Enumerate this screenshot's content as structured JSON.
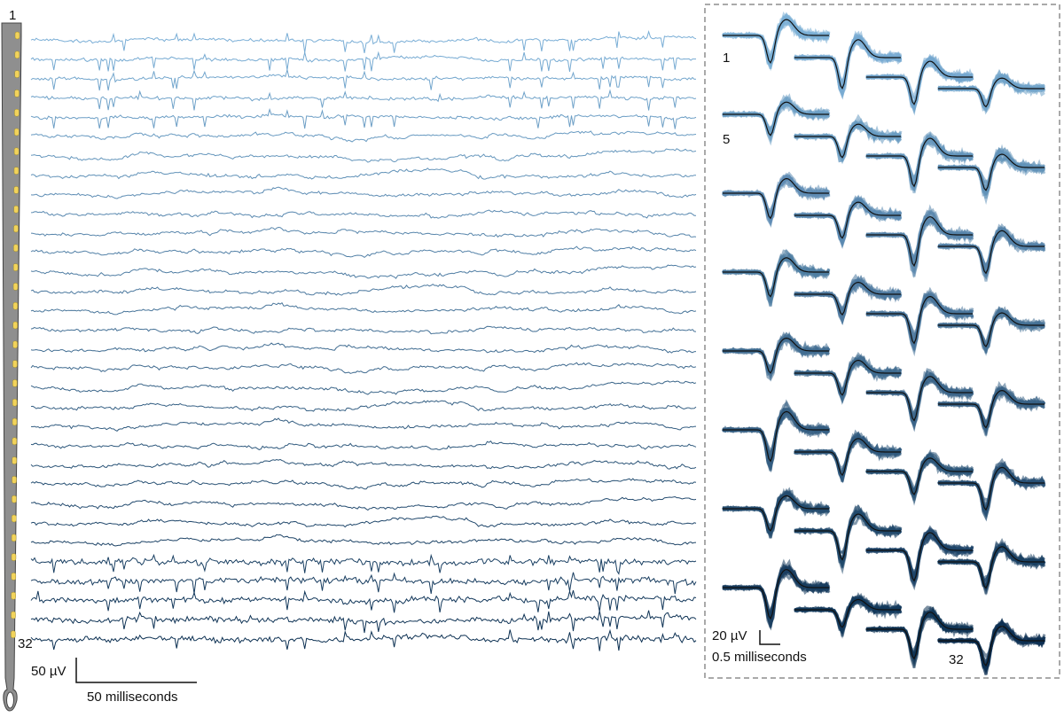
{
  "probe": {
    "top_label": "1",
    "bottom_label": "32"
  },
  "trace_scale": {
    "voltage": "50 µV",
    "time": "50 milliseconds"
  },
  "waveforms": {
    "first_label": "1",
    "fifth_label": "5",
    "last_label": "32",
    "voltage_scale": "20 µV",
    "time_scale": "0.5 milliseconds"
  }
}
